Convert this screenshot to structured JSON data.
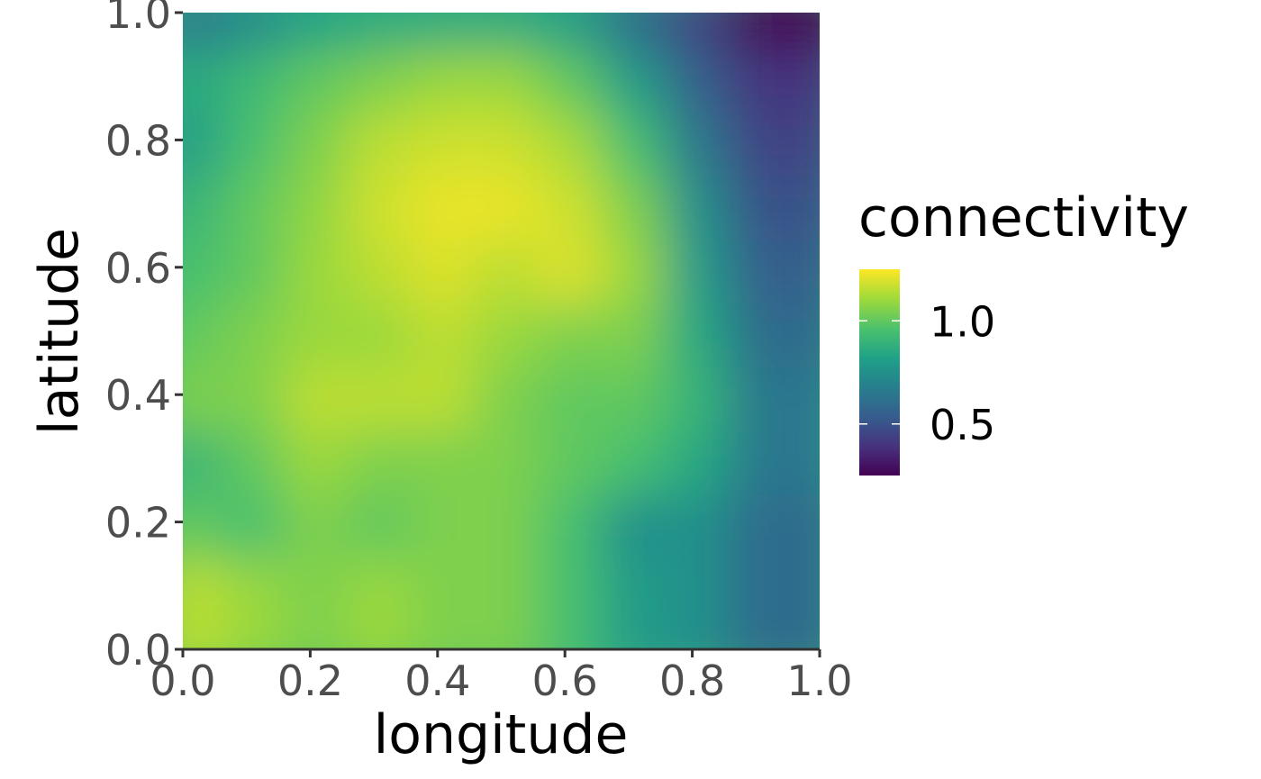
{
  "chart_data": {
    "type": "heatmap",
    "xlabel": "longitude",
    "ylabel": "latitude",
    "xlim": [
      0,
      1
    ],
    "ylim": [
      0,
      1
    ],
    "x_ticks": [
      "0.0",
      "0.2",
      "0.4",
      "0.6",
      "0.8",
      "1.0"
    ],
    "y_ticks": [
      "0.0",
      "0.2",
      "0.4",
      "0.6",
      "0.8",
      "1.0"
    ],
    "grid": false,
    "colorscale": "viridis",
    "legend": {
      "title": "connectivity",
      "placement": "right",
      "ticks": [
        {
          "value": 0.5,
          "label": "0.5"
        },
        {
          "value": 1.0,
          "label": "1.0"
        }
      ],
      "range": [
        0.25,
        1.25
      ]
    },
    "grid_x": [
      0.05,
      0.15,
      0.25,
      0.35,
      0.45,
      0.55,
      0.65,
      0.75,
      0.85,
      0.95
    ],
    "grid_y": [
      0.95,
      0.85,
      0.75,
      0.65,
      0.55,
      0.45,
      0.35,
      0.25,
      0.15,
      0.05
    ],
    "z": [
      [
        0.65,
        0.72,
        0.82,
        0.85,
        0.85,
        0.85,
        0.8,
        0.6,
        0.45,
        0.25
      ],
      [
        0.85,
        0.92,
        1.0,
        1.05,
        1.1,
        1.1,
        1.0,
        0.8,
        0.55,
        0.4
      ],
      [
        0.8,
        0.95,
        1.05,
        1.15,
        1.18,
        1.18,
        1.12,
        0.95,
        0.65,
        0.45
      ],
      [
        0.9,
        1.0,
        1.08,
        1.18,
        1.22,
        1.22,
        1.18,
        1.05,
        0.75,
        0.5
      ],
      [
        0.95,
        1.0,
        1.1,
        1.15,
        1.2,
        1.15,
        1.2,
        1.1,
        0.8,
        0.55
      ],
      [
        1.0,
        1.05,
        1.1,
        1.1,
        1.15,
        1.1,
        1.05,
        1.05,
        0.85,
        0.6
      ],
      [
        1.05,
        1.05,
        1.15,
        1.15,
        1.15,
        1.05,
        1.0,
        1.0,
        0.9,
        0.65
      ],
      [
        0.9,
        1.0,
        1.1,
        1.05,
        1.05,
        1.05,
        1.0,
        0.95,
        0.85,
        0.65
      ],
      [
        1.0,
        0.95,
        1.05,
        1.0,
        1.05,
        1.05,
        0.95,
        0.75,
        0.75,
        0.6
      ],
      [
        1.15,
        1.1,
        1.05,
        1.1,
        1.05,
        1.05,
        0.95,
        0.8,
        0.75,
        0.6
      ]
    ]
  }
}
